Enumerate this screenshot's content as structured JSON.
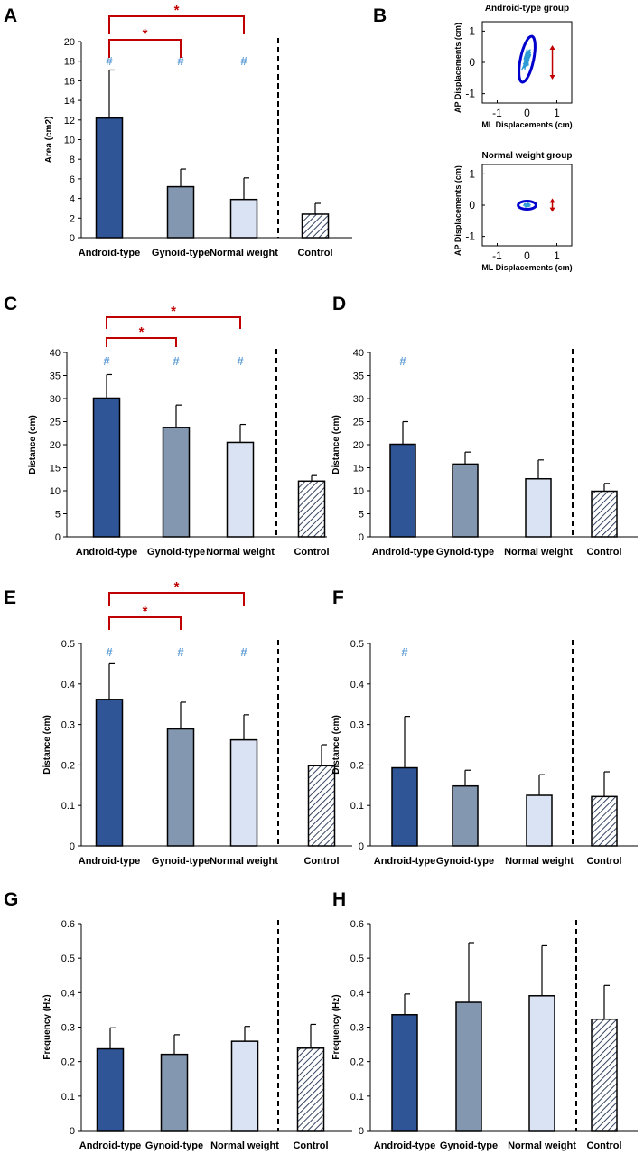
{
  "colors": {
    "android": "#2f5597",
    "gynoid": "#8497b0",
    "normal": "#dae3f3",
    "control_hatch": "#1f2f4f",
    "star": "#c00000",
    "hash": "#5b9bd5",
    "ellipse": "#0000cc",
    "scatter": "#2e9bd6",
    "arrow": "#c00000"
  },
  "chart_data": [
    {
      "panel": "A",
      "type": "bar",
      "categories": [
        "Android-type",
        "Gynoid-type",
        "Normal weight",
        "Control"
      ],
      "values": [
        12.2,
        5.2,
        3.9,
        2.4
      ],
      "errors": [
        4.9,
        1.8,
        2.2,
        1.1
      ],
      "ylabel": "Area (cm2)",
      "ylim": [
        0,
        20
      ],
      "ticks": [
        0,
        2,
        4,
        6,
        8,
        10,
        12,
        14,
        16,
        18,
        20
      ],
      "hash_groups": [
        0,
        1,
        2
      ],
      "hash_symbol": "#",
      "brackets": [
        {
          "from": 0,
          "to": 1,
          "label": "*"
        },
        {
          "from": 0,
          "to": 2,
          "label": "*"
        }
      ]
    },
    {
      "panel": "C",
      "type": "bar",
      "categories": [
        "Android-type",
        "Gynoid-type",
        "Normal weight",
        "Control"
      ],
      "values": [
        30.1,
        23.7,
        20.5,
        12.1
      ],
      "errors": [
        5.1,
        4.9,
        3.9,
        1.2
      ],
      "ylabel": "Distance (cm)",
      "ylim": [
        0,
        40
      ],
      "ticks": [
        0,
        5,
        10,
        15,
        20,
        25,
        30,
        35,
        40
      ],
      "hash_groups": [
        0,
        1,
        2
      ],
      "hash_symbol": "#",
      "brackets": [
        {
          "from": 0,
          "to": 1,
          "label": "*"
        },
        {
          "from": 0,
          "to": 2,
          "label": "*"
        }
      ]
    },
    {
      "panel": "D",
      "type": "bar",
      "categories": [
        "Android-type",
        "Gynoid-type",
        "Normal weight",
        "Control"
      ],
      "values": [
        20.1,
        15.8,
        12.6,
        9.9
      ],
      "errors": [
        4.9,
        2.6,
        4.1,
        1.7
      ],
      "ylabel": "Distance (cm)",
      "ylim": [
        0,
        40
      ],
      "ticks": [
        0,
        5,
        10,
        15,
        20,
        25,
        30,
        35,
        40
      ],
      "hash_groups": [
        0
      ],
      "hash_symbol": "#",
      "brackets": []
    },
    {
      "panel": "E",
      "type": "bar",
      "categories": [
        "Android-type",
        "Gynoid-type",
        "Normal weight",
        "Control"
      ],
      "values": [
        0.362,
        0.289,
        0.262,
        0.198
      ],
      "errors": [
        0.088,
        0.066,
        0.062,
        0.052
      ],
      "ylabel": "Distance (cm)",
      "ylim": [
        0,
        0.5
      ],
      "ticks": [
        "0",
        "0.1",
        "0.2",
        "0.3",
        "0.4",
        "0.5"
      ],
      "hash_groups": [
        0,
        1,
        2
      ],
      "hash_symbol": "#",
      "brackets": [
        {
          "from": 0,
          "to": 1,
          "label": "*"
        },
        {
          "from": 0,
          "to": 2,
          "label": "*"
        }
      ]
    },
    {
      "panel": "F",
      "type": "bar",
      "categories": [
        "Android-type",
        "Gynoid-type",
        "Normal weight",
        "Control"
      ],
      "values": [
        0.193,
        0.148,
        0.125,
        0.122
      ],
      "errors": [
        0.127,
        0.039,
        0.051,
        0.061
      ],
      "ylabel": "Distance (cm)",
      "ylim": [
        0,
        0.5
      ],
      "ticks": [
        "0",
        "0.1",
        "0.2",
        "0.3",
        "0.4",
        "0.5"
      ],
      "hash_groups": [
        0
      ],
      "hash_symbol": "#",
      "brackets": []
    },
    {
      "panel": "G",
      "type": "bar",
      "categories": [
        "Android-type",
        "Gynoid-type",
        "Normal weight",
        "Control"
      ],
      "values": [
        0.237,
        0.221,
        0.259,
        0.239
      ],
      "errors": [
        0.061,
        0.057,
        0.043,
        0.069
      ],
      "ylabel": "Frequency (Hz)",
      "ylim": [
        0,
        0.6
      ],
      "ticks": [
        "0",
        "0.1",
        "0.2",
        "0.3",
        "0.4",
        "0.5",
        "0.6"
      ],
      "hash_groups": [],
      "hash_symbol": "#",
      "brackets": []
    },
    {
      "panel": "H",
      "type": "bar",
      "categories": [
        "Android-type",
        "Gynoid-type",
        "Normal weight",
        "Control"
      ],
      "values": [
        0.336,
        0.372,
        0.391,
        0.323
      ],
      "errors": [
        0.06,
        0.173,
        0.145,
        0.098
      ],
      "ylabel": "Frequency (Hz)",
      "ylim": [
        0,
        0.6
      ],
      "ticks": [
        "0",
        "0.1",
        "0.2",
        "0.3",
        "0.4",
        "0.5",
        "0.6"
      ],
      "hash_groups": [],
      "hash_symbol": "#",
      "brackets": []
    },
    {
      "panel": "B-top",
      "type": "scatter",
      "title": "Android-type group",
      "xlabel": "ML Displacements (cm)",
      "ylabel": "AP Displacements (cm)",
      "xlim": [
        -1.5,
        1.5
      ],
      "ylim": [
        -1.3,
        1.3
      ],
      "xticks": [
        "-1",
        "0",
        "1"
      ],
      "yticks": [
        "1",
        "0",
        "-1"
      ],
      "ellipse": {
        "cx": 0.0,
        "cy": 0.1,
        "rx": 0.22,
        "ry": 0.75,
        "rotation_deg": 12
      },
      "sway_range_ap": [
        -0.55,
        0.55
      ]
    },
    {
      "panel": "B-bottom",
      "type": "scatter",
      "title": "Normal weight group",
      "xlabel": "ML Displacements (cm)",
      "ylabel": "AP Displacements (cm)",
      "xlim": [
        -1.5,
        1.5
      ],
      "ylim": [
        -1.3,
        1.3
      ],
      "xticks": [
        "-1",
        "0",
        "1"
      ],
      "yticks": [
        "1",
        "0",
        "-1"
      ],
      "ellipse": {
        "cx": 0.0,
        "cy": 0.0,
        "rx": 0.3,
        "ry": 0.13,
        "rotation_deg": 0
      },
      "sway_range_ap": [
        -0.22,
        0.22
      ]
    }
  ],
  "panel_labels": [
    "A",
    "B",
    "C",
    "D",
    "E",
    "F",
    "G",
    "H"
  ]
}
